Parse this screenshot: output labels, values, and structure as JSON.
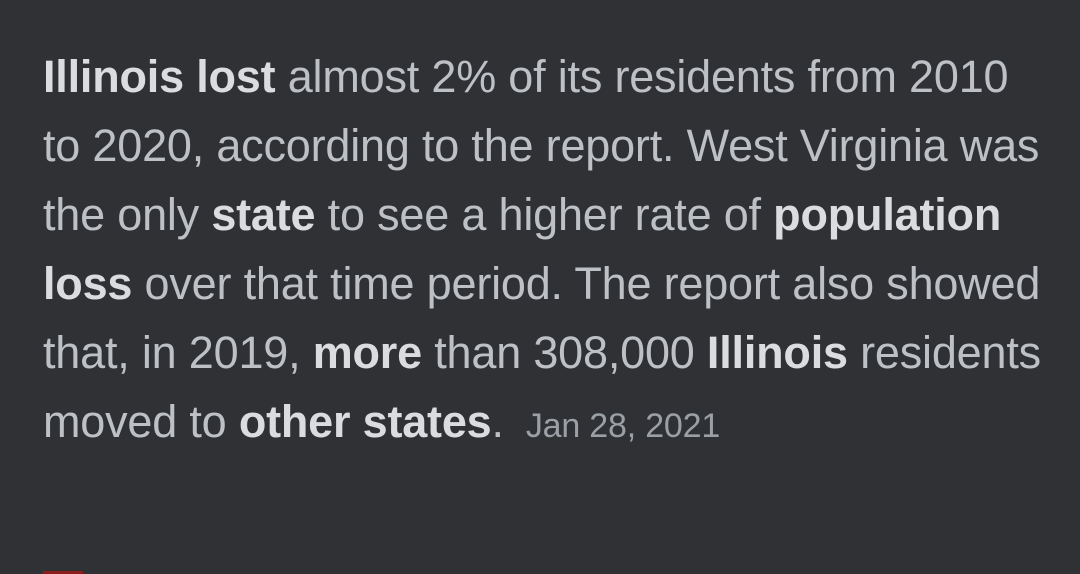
{
  "snippet": {
    "segments": [
      {
        "text": "Illinois lost",
        "bold": true
      },
      {
        "text": " almost 2% of its residents from 2010 to 2020, according to the report. West Virginia was the only ",
        "bold": false
      },
      {
        "text": "state",
        "bold": true
      },
      {
        "text": " to see a higher rate of ",
        "bold": false
      },
      {
        "text": "population loss",
        "bold": true
      },
      {
        "text": " over that time period. The report also showed that, in 2019, ",
        "bold": false
      },
      {
        "text": "more",
        "bold": true
      },
      {
        "text": " than 308,000 ",
        "bold": false
      },
      {
        "text": "Illinois",
        "bold": true
      },
      {
        "text": " residents moved to ",
        "bold": false
      },
      {
        "text": "other states",
        "bold": true
      },
      {
        "text": ".",
        "bold": false
      }
    ],
    "date": "Jan 28, 2021"
  },
  "colors": {
    "background": "#303134",
    "text": "#bdc1c6",
    "bold_text": "#dadce0",
    "date": "#9aa0a6",
    "accent": "#8c1d1d"
  }
}
